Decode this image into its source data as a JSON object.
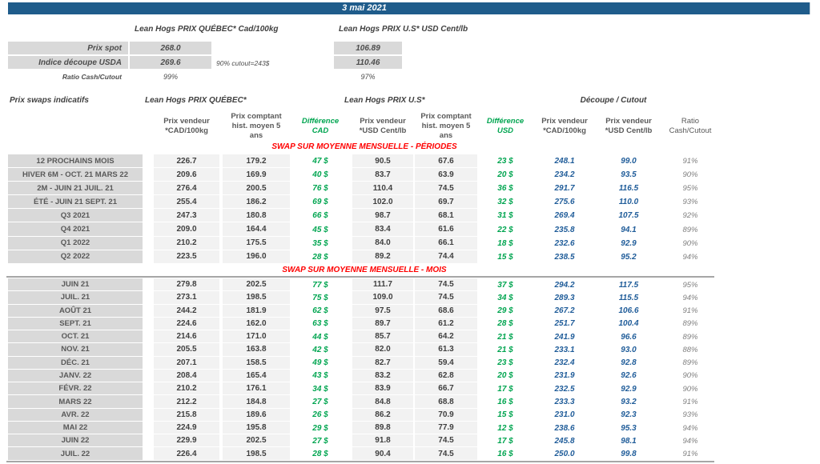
{
  "title_bar": {
    "date": "3 mai 2021"
  },
  "summary": {
    "qc_header": "Lean Hogs PRIX QUÉBEC* Cad/100kg",
    "us_header": "Lean Hogs PRIX U.S* USD Cent/lb",
    "rows": [
      {
        "label": "Prix spot",
        "qc": "268.0",
        "us": "106.89"
      },
      {
        "label": "Indice découpe USDA",
        "qc": "269.6",
        "us": "110.46",
        "note": "90% cutout=243$"
      },
      {
        "label": "Ratio Cash/Cutout",
        "qc": "99%",
        "us": "97%"
      }
    ]
  },
  "swaps": {
    "title": "Prix swaps indicatifs",
    "group_headers": {
      "qc": "Lean Hogs PRIX QUÉBEC*",
      "us": "Lean Hogs PRIX U.S*",
      "cutout": "Découpe / Cutout"
    },
    "col_headers": [
      {
        "label": "Prix vendeur\n*CAD/100kg"
      },
      {
        "label": "Prix comptant\nhist. moyen 5\nans"
      },
      {
        "label": "Différence\nCAD"
      },
      {
        "label": "Prix vendeur\n*USD Cent/lb"
      },
      {
        "label": "Prix comptant\nhist. moyen 5\nans"
      },
      {
        "label": "Différence\nUSD"
      },
      {
        "label": "Prix vendeur\n*CAD/100kg"
      },
      {
        "label": "Prix vendeur\n*USD Cent/lb"
      },
      {
        "label": "Ratio\nCash/Cutout"
      }
    ],
    "sections": [
      {
        "title": "SWAP SUR MOYENNE MENSUELLE - PÉRIODES",
        "rows": [
          [
            "12 PROCHAINS MOIS",
            "226.7",
            "179.2",
            "47 $",
            "90.5",
            "67.6",
            "23 $",
            "248.1",
            "99.0",
            "91%"
          ],
          [
            "HIVER 6M - OCT. 21 MARS 22",
            "209.6",
            "169.9",
            "40 $",
            "83.7",
            "63.9",
            "20 $",
            "234.2",
            "93.5",
            "90%"
          ],
          [
            "2M - JUIN 21 JUIL. 21",
            "276.4",
            "200.5",
            "76 $",
            "110.4",
            "74.5",
            "36 $",
            "291.7",
            "116.5",
            "95%"
          ],
          [
            "ÉTÉ - JUIN 21 SEPT. 21",
            "255.4",
            "186.2",
            "69 $",
            "102.0",
            "69.7",
            "32 $",
            "275.6",
            "110.0",
            "93%"
          ],
          [
            "Q3 2021",
            "247.3",
            "180.8",
            "66 $",
            "98.7",
            "68.1",
            "31 $",
            "269.4",
            "107.5",
            "92%"
          ],
          [
            "Q4 2021",
            "209.0",
            "164.4",
            "45 $",
            "83.4",
            "61.6",
            "22 $",
            "235.8",
            "94.1",
            "89%"
          ],
          [
            "Q1 2022",
            "210.2",
            "175.5",
            "35 $",
            "84.0",
            "66.1",
            "18 $",
            "232.6",
            "92.9",
            "90%"
          ],
          [
            "Q2 2022",
            "223.5",
            "196.0",
            "28 $",
            "89.2",
            "74.4",
            "15 $",
            "238.5",
            "95.2",
            "94%"
          ]
        ]
      },
      {
        "title": "SWAP SUR MOYENNE MENSUELLE - MOIS",
        "rows": [
          [
            "JUIN 21",
            "279.8",
            "202.5",
            "77 $",
            "111.7",
            "74.5",
            "37 $",
            "294.2",
            "117.5",
            "95%"
          ],
          [
            "JUIL. 21",
            "273.1",
            "198.5",
            "75 $",
            "109.0",
            "74.5",
            "34 $",
            "289.3",
            "115.5",
            "94%"
          ],
          [
            "AOÛT 21",
            "244.2",
            "181.9",
            "62 $",
            "97.5",
            "68.6",
            "29 $",
            "267.2",
            "106.6",
            "91%"
          ],
          [
            "SEPT. 21",
            "224.6",
            "162.0",
            "63 $",
            "89.7",
            "61.2",
            "28 $",
            "251.7",
            "100.4",
            "89%"
          ],
          [
            "OCT. 21",
            "214.6",
            "171.0",
            "44 $",
            "85.7",
            "64.2",
            "21 $",
            "241.9",
            "96.6",
            "89%"
          ],
          [
            "NOV. 21",
            "205.5",
            "163.8",
            "42 $",
            "82.0",
            "61.3",
            "21 $",
            "233.1",
            "93.0",
            "88%"
          ],
          [
            "DÉC. 21",
            "207.1",
            "158.5",
            "49 $",
            "82.7",
            "59.4",
            "23 $",
            "232.4",
            "92.8",
            "89%"
          ],
          [
            "JANV. 22",
            "208.4",
            "165.4",
            "43 $",
            "83.2",
            "62.8",
            "20 $",
            "231.9",
            "92.6",
            "90%"
          ],
          [
            "FÉVR. 22",
            "210.2",
            "176.1",
            "34 $",
            "83.9",
            "66.7",
            "17 $",
            "232.5",
            "92.9",
            "90%"
          ],
          [
            "MARS 22",
            "212.2",
            "184.8",
            "27 $",
            "84.8",
            "68.8",
            "16 $",
            "233.3",
            "93.2",
            "91%"
          ],
          [
            "AVR. 22",
            "215.8",
            "189.6",
            "26 $",
            "86.2",
            "70.9",
            "15 $",
            "231.0",
            "92.3",
            "93%"
          ],
          [
            "MAI 22",
            "224.9",
            "195.8",
            "29 $",
            "89.8",
            "77.9",
            "12 $",
            "238.6",
            "95.3",
            "94%"
          ],
          [
            "JUIN 22",
            "229.9",
            "202.5",
            "27 $",
            "91.8",
            "74.5",
            "17 $",
            "245.8",
            "98.1",
            "94%"
          ],
          [
            "JUIL. 22",
            "226.4",
            "198.5",
            "28 $",
            "90.4",
            "74.5",
            "16 $",
            "250.0",
            "99.8",
            "91%"
          ]
        ]
      }
    ]
  },
  "colors": {
    "header_bar": "#1F5C8B",
    "accent_red": "#FF0000",
    "accent_green": "#00A550",
    "accent_blue": "#1F5C99",
    "label_cell_grey": "#D9D9D9",
    "column_band_grey": "#F2F2F2"
  }
}
